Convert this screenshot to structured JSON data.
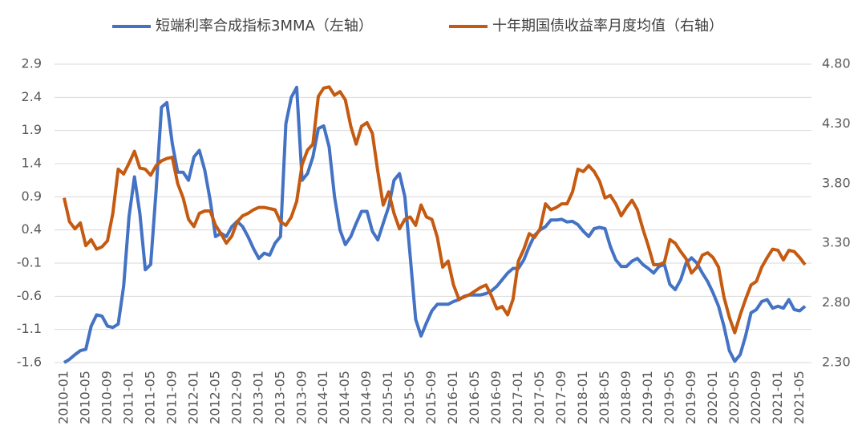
{
  "chart_data": {
    "type": "line",
    "categories": [
      "2010-01",
      null,
      null,
      null,
      "2010-05",
      null,
      null,
      null,
      "2010-09",
      null,
      null,
      null,
      "2011-01",
      null,
      null,
      null,
      "2011-05",
      null,
      null,
      null,
      "2011-09",
      null,
      null,
      null,
      "2012-01",
      null,
      null,
      null,
      "2012-05",
      null,
      null,
      null,
      "2012-09",
      null,
      null,
      null,
      "2013-01",
      null,
      null,
      null,
      "2013-05",
      null,
      null,
      null,
      "2013-09",
      null,
      null,
      null,
      "2014-01",
      null,
      null,
      null,
      "2014-05",
      null,
      null,
      null,
      "2014-09",
      null,
      null,
      null,
      "2015-01",
      null,
      null,
      null,
      "2015-05",
      null,
      null,
      null,
      "2015-09",
      null,
      null,
      null,
      "2016-01",
      null,
      null,
      null,
      "2016-05",
      null,
      null,
      null,
      "2016-09",
      null,
      null,
      null,
      "2017-01",
      null,
      null,
      null,
      "2017-05",
      null,
      null,
      null,
      "2017-09",
      null,
      null,
      null,
      "2018-01",
      null,
      null,
      null,
      "2018-05",
      null,
      null,
      null,
      "2018-09",
      null,
      null,
      null,
      "2019-01",
      null,
      null,
      null,
      "2019-05",
      null,
      null,
      null,
      "2019-09",
      null,
      null,
      null,
      "2020-01",
      null,
      null,
      null,
      "2020-05",
      null,
      null,
      null,
      "2020-09",
      null,
      null,
      null,
      "2021-01",
      null,
      null,
      null,
      "2021-05",
      null
    ],
    "series": [
      {
        "name": "短端利率合成指标3MMA（左轴）",
        "color": "#4472c4",
        "values": [
          -1.6,
          -1.55,
          -1.48,
          -1.42,
          -1.4,
          -1.05,
          -0.88,
          -0.9,
          -1.05,
          -1.07,
          -1.02,
          -0.45,
          0.6,
          1.2,
          0.65,
          -0.2,
          -0.12,
          1.0,
          2.25,
          2.32,
          1.7,
          1.27,
          1.27,
          1.15,
          1.5,
          1.6,
          1.3,
          0.85,
          0.3,
          0.35,
          0.3,
          0.45,
          0.53,
          0.45,
          0.3,
          0.12,
          -0.03,
          0.05,
          0.02,
          0.2,
          0.3,
          2.0,
          2.4,
          2.55,
          1.15,
          1.25,
          1.5,
          1.93,
          1.97,
          1.65,
          0.9,
          0.4,
          0.18,
          0.3,
          0.5,
          0.68,
          0.68,
          0.38,
          0.25,
          0.5,
          0.75,
          1.15,
          1.25,
          0.9,
          0.0,
          -0.95,
          -1.2,
          -1.0,
          -0.82,
          -0.72,
          -0.72,
          -0.72,
          -0.68,
          -0.65,
          -0.6,
          -0.58,
          -0.58,
          -0.58,
          -0.56,
          -0.52,
          -0.45,
          -0.35,
          -0.25,
          -0.18,
          -0.18,
          -0.05,
          0.15,
          0.32,
          0.4,
          0.45,
          0.55,
          0.55,
          0.56,
          0.52,
          0.53,
          0.48,
          0.38,
          0.3,
          0.42,
          0.44,
          0.42,
          0.15,
          -0.05,
          -0.15,
          -0.15,
          -0.07,
          -0.03,
          -0.12,
          -0.18,
          -0.25,
          -0.15,
          -0.12,
          -0.42,
          -0.5,
          -0.35,
          -0.1,
          -0.02,
          -0.1,
          -0.25,
          -0.38,
          -0.55,
          -0.75,
          -1.05,
          -1.42,
          -1.58,
          -1.48,
          -1.2,
          -0.85,
          -0.8,
          -0.68,
          -0.65,
          -0.78,
          -0.75,
          -0.78,
          -0.65,
          -0.8,
          -0.82,
          -0.75
        ]
      },
      {
        "name": "十年期国债收益率月度均值（右轴）",
        "color": "#c55a11",
        "axis": "y2",
        "values": [
          3.68,
          3.48,
          3.42,
          3.47,
          3.28,
          3.33,
          3.25,
          3.27,
          3.32,
          3.55,
          3.92,
          3.88,
          3.97,
          4.07,
          3.93,
          3.92,
          3.87,
          3.95,
          3.99,
          4.01,
          4.02,
          3.8,
          3.68,
          3.5,
          3.44,
          3.55,
          3.57,
          3.57,
          3.45,
          3.38,
          3.3,
          3.36,
          3.48,
          3.53,
          3.55,
          3.58,
          3.6,
          3.6,
          3.59,
          3.58,
          3.48,
          3.45,
          3.52,
          3.65,
          3.96,
          4.08,
          4.13,
          4.53,
          4.6,
          4.61,
          4.54,
          4.57,
          4.5,
          4.28,
          4.13,
          4.28,
          4.31,
          4.22,
          3.9,
          3.62,
          3.73,
          3.55,
          3.42,
          3.5,
          3.52,
          3.45,
          3.62,
          3.52,
          3.5,
          3.35,
          3.1,
          3.15,
          2.95,
          2.83,
          2.85,
          2.87,
          2.9,
          2.93,
          2.95,
          2.86,
          2.75,
          2.77,
          2.7,
          2.83,
          3.15,
          3.25,
          3.38,
          3.35,
          3.42,
          3.63,
          3.58,
          3.6,
          3.63,
          3.63,
          3.73,
          3.92,
          3.9,
          3.95,
          3.9,
          3.82,
          3.68,
          3.7,
          3.63,
          3.53,
          3.6,
          3.66,
          3.58,
          3.42,
          3.28,
          3.12,
          3.12,
          3.14,
          3.33,
          3.3,
          3.23,
          3.17,
          3.05,
          3.1,
          3.2,
          3.22,
          3.18,
          3.1,
          2.85,
          2.68,
          2.55,
          2.7,
          2.83,
          2.95,
          2.98,
          3.1,
          3.18,
          3.25,
          3.24,
          3.16,
          3.24,
          3.23,
          3.18,
          3.12
        ]
      }
    ],
    "ylim": [
      -1.6,
      2.9
    ],
    "yticks": [
      -1.6,
      -1.1,
      -0.6,
      -0.1,
      0.4,
      0.9,
      1.4,
      1.9,
      2.4,
      2.9
    ],
    "y2lim": [
      2.3,
      4.8
    ],
    "y2ticks": [
      {
        "value": 2.3,
        "label": "2.30"
      },
      {
        "value": 2.8,
        "label": "2.80"
      },
      {
        "value": 3.3,
        "label": "3.30"
      },
      {
        "value": 3.8,
        "label": "3.80"
      },
      {
        "value": 4.3,
        "label": "4.30"
      },
      {
        "value": 4.8,
        "label": "4.80"
      }
    ],
    "grid": true,
    "legend": "top"
  }
}
